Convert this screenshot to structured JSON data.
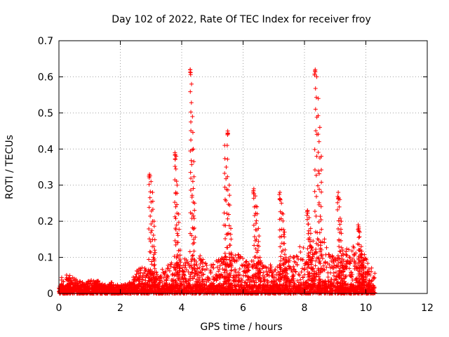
{
  "chart_data": {
    "type": "scatter",
    "title": "Day 102 of 2022, Rate Of TEC Index for receiver froy",
    "xlabel": "GPS time / hours",
    "ylabel": "ROTI / TECUs",
    "xlim": [
      0,
      12
    ],
    "ylim": [
      0,
      0.7
    ],
    "xticks": [
      0,
      2,
      4,
      6,
      8,
      10,
      12
    ],
    "yticks": [
      0,
      0.1,
      0.2,
      0.3,
      0.4,
      0.5,
      0.6,
      0.7
    ],
    "xtick_labels": [
      "0",
      "2",
      "4",
      "6",
      "8",
      "10",
      "12"
    ],
    "ytick_labels": [
      "0",
      "0.1",
      "0.2",
      "0.3",
      "0.4",
      "0.5",
      "0.6",
      "0.7"
    ],
    "grid": true,
    "marker": "+",
    "color": "#ff0000",
    "spikes": [
      {
        "x": [
          2.95,
          3.0,
          3.05,
          3.1,
          3.12
        ],
        "y": [
          0.33,
          0.31,
          0.28,
          0.2,
          0.12
        ]
      },
      {
        "x": [
          3.78,
          3.82,
          3.85,
          3.9,
          3.95
        ],
        "y": [
          0.39,
          0.38,
          0.3,
          0.22,
          0.12
        ]
      },
      {
        "x": [
          4.28,
          4.32,
          4.35,
          4.38,
          4.42
        ],
        "y": [
          0.62,
          0.58,
          0.49,
          0.4,
          0.25
        ]
      },
      {
        "x": [
          5.4,
          5.45,
          5.5,
          5.55,
          5.6
        ],
        "y": [
          0.41,
          0.35,
          0.45,
          0.3,
          0.18
        ]
      },
      {
        "x": [
          6.35,
          6.4,
          6.45,
          6.5,
          6.55
        ],
        "y": [
          0.29,
          0.27,
          0.24,
          0.18,
          0.1
        ]
      },
      {
        "x": [
          7.2,
          7.25,
          7.3,
          7.35,
          7.4
        ],
        "y": [
          0.28,
          0.25,
          0.22,
          0.17,
          0.1
        ]
      },
      {
        "x": [
          8.1,
          8.15,
          8.2,
          8.25
        ],
        "y": [
          0.23,
          0.21,
          0.18,
          0.12
        ]
      },
      {
        "x": [
          8.35,
          8.4,
          8.45,
          8.5,
          8.55
        ],
        "y": [
          0.62,
          0.6,
          0.54,
          0.46,
          0.38
        ]
      },
      {
        "x": [
          9.1,
          9.15,
          9.2,
          9.25
        ],
        "y": [
          0.28,
          0.26,
          0.2,
          0.12
        ]
      },
      {
        "x": [
          9.75,
          9.8,
          9.85,
          9.9
        ],
        "y": [
          0.19,
          0.17,
          0.13,
          0.09
        ]
      }
    ],
    "background_points": [
      {
        "x": 0.0,
        "y": 0.02
      },
      {
        "x": 0.1,
        "y": 0.05
      },
      {
        "x": 0.3,
        "y": 0.05
      },
      {
        "x": 0.5,
        "y": 0.04
      },
      {
        "x": 0.8,
        "y": 0.03
      },
      {
        "x": 1.2,
        "y": 0.04
      },
      {
        "x": 1.5,
        "y": 0.02
      },
      {
        "x": 1.7,
        "y": 0.03
      },
      {
        "x": 2.0,
        "y": 0.02
      },
      {
        "x": 2.3,
        "y": 0.03
      },
      {
        "x": 2.6,
        "y": 0.07
      },
      {
        "x": 3.3,
        "y": 0.06
      },
      {
        "x": 3.5,
        "y": 0.08
      },
      {
        "x": 4.0,
        "y": 0.09
      },
      {
        "x": 4.6,
        "y": 0.1
      },
      {
        "x": 4.9,
        "y": 0.08
      },
      {
        "x": 5.2,
        "y": 0.09
      },
      {
        "x": 5.8,
        "y": 0.11
      },
      {
        "x": 6.1,
        "y": 0.09
      },
      {
        "x": 6.8,
        "y": 0.08
      },
      {
        "x": 7.0,
        "y": 0.07
      },
      {
        "x": 7.6,
        "y": 0.1
      },
      {
        "x": 7.9,
        "y": 0.13
      },
      {
        "x": 8.7,
        "y": 0.15
      },
      {
        "x": 8.9,
        "y": 0.1
      },
      {
        "x": 9.4,
        "y": 0.12
      },
      {
        "x": 9.6,
        "y": 0.14
      },
      {
        "x": 10.0,
        "y": 0.1
      },
      {
        "x": 10.2,
        "y": 0.07
      },
      {
        "x": 10.3,
        "y": 0.06
      }
    ]
  }
}
